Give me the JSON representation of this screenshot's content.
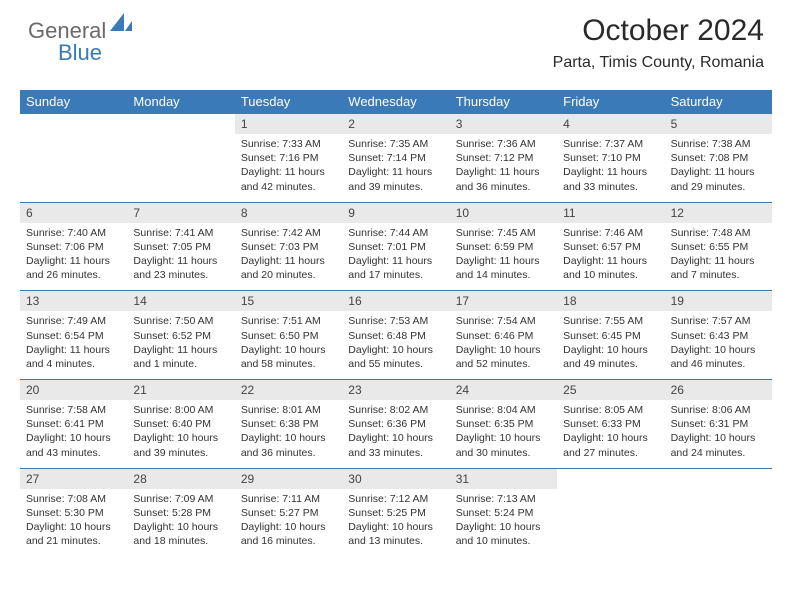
{
  "logo": {
    "part1": "General",
    "part2": "Blue"
  },
  "title": "October 2024",
  "location": "Parta, Timis County, Romania",
  "dayNames": [
    "Sunday",
    "Monday",
    "Tuesday",
    "Wednesday",
    "Thursday",
    "Friday",
    "Saturday"
  ],
  "colors": {
    "brand": "#3a7ab8",
    "headerBg": "#3a7ab8",
    "headerText": "#ffffff",
    "dayNumBg": "#e9e9e9",
    "ruleColor": "#3a7ab8",
    "bodyText": "#333333",
    "logoGray": "#6a6a6a"
  },
  "weeks": [
    [
      {
        "n": "",
        "sr": "",
        "ss": "",
        "dl": ""
      },
      {
        "n": "",
        "sr": "",
        "ss": "",
        "dl": ""
      },
      {
        "n": "1",
        "sr": "Sunrise: 7:33 AM",
        "ss": "Sunset: 7:16 PM",
        "dl": "Daylight: 11 hours and 42 minutes."
      },
      {
        "n": "2",
        "sr": "Sunrise: 7:35 AM",
        "ss": "Sunset: 7:14 PM",
        "dl": "Daylight: 11 hours and 39 minutes."
      },
      {
        "n": "3",
        "sr": "Sunrise: 7:36 AM",
        "ss": "Sunset: 7:12 PM",
        "dl": "Daylight: 11 hours and 36 minutes."
      },
      {
        "n": "4",
        "sr": "Sunrise: 7:37 AM",
        "ss": "Sunset: 7:10 PM",
        "dl": "Daylight: 11 hours and 33 minutes."
      },
      {
        "n": "5",
        "sr": "Sunrise: 7:38 AM",
        "ss": "Sunset: 7:08 PM",
        "dl": "Daylight: 11 hours and 29 minutes."
      }
    ],
    [
      {
        "n": "6",
        "sr": "Sunrise: 7:40 AM",
        "ss": "Sunset: 7:06 PM",
        "dl": "Daylight: 11 hours and 26 minutes."
      },
      {
        "n": "7",
        "sr": "Sunrise: 7:41 AM",
        "ss": "Sunset: 7:05 PM",
        "dl": "Daylight: 11 hours and 23 minutes."
      },
      {
        "n": "8",
        "sr": "Sunrise: 7:42 AM",
        "ss": "Sunset: 7:03 PM",
        "dl": "Daylight: 11 hours and 20 minutes."
      },
      {
        "n": "9",
        "sr": "Sunrise: 7:44 AM",
        "ss": "Sunset: 7:01 PM",
        "dl": "Daylight: 11 hours and 17 minutes."
      },
      {
        "n": "10",
        "sr": "Sunrise: 7:45 AM",
        "ss": "Sunset: 6:59 PM",
        "dl": "Daylight: 11 hours and 14 minutes."
      },
      {
        "n": "11",
        "sr": "Sunrise: 7:46 AM",
        "ss": "Sunset: 6:57 PM",
        "dl": "Daylight: 11 hours and 10 minutes."
      },
      {
        "n": "12",
        "sr": "Sunrise: 7:48 AM",
        "ss": "Sunset: 6:55 PM",
        "dl": "Daylight: 11 hours and 7 minutes."
      }
    ],
    [
      {
        "n": "13",
        "sr": "Sunrise: 7:49 AM",
        "ss": "Sunset: 6:54 PM",
        "dl": "Daylight: 11 hours and 4 minutes."
      },
      {
        "n": "14",
        "sr": "Sunrise: 7:50 AM",
        "ss": "Sunset: 6:52 PM",
        "dl": "Daylight: 11 hours and 1 minute."
      },
      {
        "n": "15",
        "sr": "Sunrise: 7:51 AM",
        "ss": "Sunset: 6:50 PM",
        "dl": "Daylight: 10 hours and 58 minutes."
      },
      {
        "n": "16",
        "sr": "Sunrise: 7:53 AM",
        "ss": "Sunset: 6:48 PM",
        "dl": "Daylight: 10 hours and 55 minutes."
      },
      {
        "n": "17",
        "sr": "Sunrise: 7:54 AM",
        "ss": "Sunset: 6:46 PM",
        "dl": "Daylight: 10 hours and 52 minutes."
      },
      {
        "n": "18",
        "sr": "Sunrise: 7:55 AM",
        "ss": "Sunset: 6:45 PM",
        "dl": "Daylight: 10 hours and 49 minutes."
      },
      {
        "n": "19",
        "sr": "Sunrise: 7:57 AM",
        "ss": "Sunset: 6:43 PM",
        "dl": "Daylight: 10 hours and 46 minutes."
      }
    ],
    [
      {
        "n": "20",
        "sr": "Sunrise: 7:58 AM",
        "ss": "Sunset: 6:41 PM",
        "dl": "Daylight: 10 hours and 43 minutes."
      },
      {
        "n": "21",
        "sr": "Sunrise: 8:00 AM",
        "ss": "Sunset: 6:40 PM",
        "dl": "Daylight: 10 hours and 39 minutes."
      },
      {
        "n": "22",
        "sr": "Sunrise: 8:01 AM",
        "ss": "Sunset: 6:38 PM",
        "dl": "Daylight: 10 hours and 36 minutes."
      },
      {
        "n": "23",
        "sr": "Sunrise: 8:02 AM",
        "ss": "Sunset: 6:36 PM",
        "dl": "Daylight: 10 hours and 33 minutes."
      },
      {
        "n": "24",
        "sr": "Sunrise: 8:04 AM",
        "ss": "Sunset: 6:35 PM",
        "dl": "Daylight: 10 hours and 30 minutes."
      },
      {
        "n": "25",
        "sr": "Sunrise: 8:05 AM",
        "ss": "Sunset: 6:33 PM",
        "dl": "Daylight: 10 hours and 27 minutes."
      },
      {
        "n": "26",
        "sr": "Sunrise: 8:06 AM",
        "ss": "Sunset: 6:31 PM",
        "dl": "Daylight: 10 hours and 24 minutes."
      }
    ],
    [
      {
        "n": "27",
        "sr": "Sunrise: 7:08 AM",
        "ss": "Sunset: 5:30 PM",
        "dl": "Daylight: 10 hours and 21 minutes."
      },
      {
        "n": "28",
        "sr": "Sunrise: 7:09 AM",
        "ss": "Sunset: 5:28 PM",
        "dl": "Daylight: 10 hours and 18 minutes."
      },
      {
        "n": "29",
        "sr": "Sunrise: 7:11 AM",
        "ss": "Sunset: 5:27 PM",
        "dl": "Daylight: 10 hours and 16 minutes."
      },
      {
        "n": "30",
        "sr": "Sunrise: 7:12 AM",
        "ss": "Sunset: 5:25 PM",
        "dl": "Daylight: 10 hours and 13 minutes."
      },
      {
        "n": "31",
        "sr": "Sunrise: 7:13 AM",
        "ss": "Sunset: 5:24 PM",
        "dl": "Daylight: 10 hours and 10 minutes."
      },
      {
        "n": "",
        "sr": "",
        "ss": "",
        "dl": ""
      },
      {
        "n": "",
        "sr": "",
        "ss": "",
        "dl": ""
      }
    ]
  ]
}
